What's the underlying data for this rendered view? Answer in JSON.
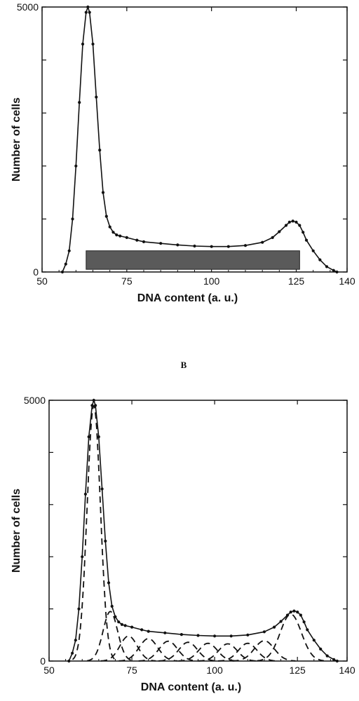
{
  "figure": {
    "panel_b_label": "B"
  },
  "chart_data": [
    {
      "type": "line",
      "panel": "top",
      "xlabel": "DNA content (a. u.)",
      "ylabel": "Number of cells",
      "xlim": [
        50,
        140
      ],
      "ylim": [
        0,
        5000
      ],
      "x_ticks": [
        50,
        75,
        100,
        125,
        140
      ],
      "y_ticks": [
        0,
        5000
      ],
      "bar_marker": {
        "x_start": 63,
        "x_end": 126,
        "y_bottom": 50,
        "y_top": 400,
        "color": "#5a5a5a"
      },
      "series": [
        {
          "style": "dotted-line",
          "x": [
            56,
            57,
            58,
            59,
            60,
            61,
            62,
            63,
            63.5,
            64,
            65,
            66,
            67,
            68,
            69,
            70,
            71,
            72,
            73,
            75,
            78,
            80,
            85,
            90,
            95,
            100,
            105,
            110,
            115,
            118,
            120,
            122,
            123,
            124,
            125,
            126,
            127,
            128,
            130,
            132,
            134,
            136,
            137
          ],
          "y": [
            0,
            150,
            400,
            1000,
            2000,
            3200,
            4300,
            4900,
            5000,
            4900,
            4300,
            3300,
            2300,
            1500,
            1050,
            850,
            750,
            700,
            680,
            650,
            600,
            570,
            540,
            510,
            490,
            480,
            480,
            500,
            560,
            650,
            760,
            880,
            940,
            960,
            940,
            880,
            750,
            600,
            400,
            230,
            100,
            30,
            0
          ]
        }
      ]
    },
    {
      "type": "line",
      "panel": "bottom",
      "xlabel": "DNA content (a. u.)",
      "ylabel": "Number of cells",
      "xlim": [
        50,
        140
      ],
      "ylim": [
        0,
        5000
      ],
      "x_ticks": [
        50,
        75,
        100,
        125,
        140
      ],
      "y_ticks": [
        0,
        5000
      ],
      "series": [
        {
          "style": "dotted-line",
          "x": [
            56,
            57,
            58,
            59,
            60,
            61,
            62,
            63,
            63.5,
            64,
            65,
            66,
            67,
            68,
            69,
            70,
            71,
            72,
            73,
            75,
            78,
            80,
            85,
            90,
            95,
            100,
            105,
            110,
            115,
            118,
            120,
            122,
            123,
            124,
            125,
            126,
            127,
            128,
            130,
            132,
            134,
            136,
            137
          ],
          "y": [
            0,
            150,
            400,
            1000,
            2000,
            3200,
            4300,
            4900,
            5000,
            4900,
            4300,
            3300,
            2300,
            1500,
            1050,
            850,
            750,
            700,
            680,
            650,
            600,
            570,
            540,
            510,
            490,
            480,
            480,
            500,
            560,
            650,
            760,
            880,
            940,
            960,
            940,
            880,
            750,
            600,
            400,
            230,
            100,
            30,
            0
          ]
        }
      ],
      "components": [
        {
          "center": 63.5,
          "amplitude": 4900,
          "sigma": 2.0
        },
        {
          "center": 68.5,
          "amplitude": 950,
          "sigma": 2.2
        },
        {
          "center": 74,
          "amplitude": 480,
          "sigma": 2.6
        },
        {
          "center": 80,
          "amplitude": 430,
          "sigma": 2.8
        },
        {
          "center": 86,
          "amplitude": 380,
          "sigma": 2.8
        },
        {
          "center": 92,
          "amplitude": 360,
          "sigma": 2.8
        },
        {
          "center": 98,
          "amplitude": 340,
          "sigma": 2.8
        },
        {
          "center": 104,
          "amplitude": 330,
          "sigma": 2.8
        },
        {
          "center": 110,
          "amplitude": 340,
          "sigma": 2.8
        },
        {
          "center": 115,
          "amplitude": 390,
          "sigma": 3.0
        },
        {
          "center": 123,
          "amplitude": 900,
          "sigma": 3.2
        }
      ]
    }
  ]
}
